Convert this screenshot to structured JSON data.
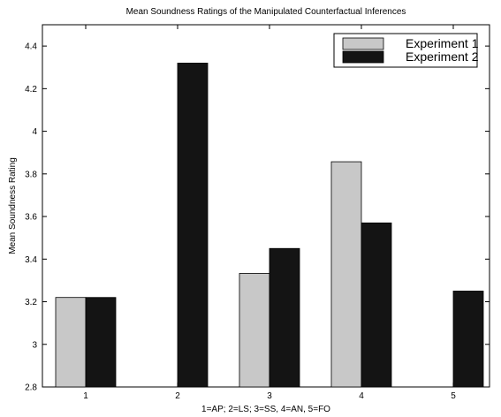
{
  "chart_data": {
    "type": "bar",
    "title": "Mean Soundness Ratings of the Manipulated Counterfactual Inferences",
    "xlabel": "1=AP; 2=LS; 3=SS, 4=AN, 5=FO",
    "ylabel": "Mean Soundness Rating",
    "categories": [
      "1",
      "2",
      "3",
      "4",
      "5"
    ],
    "series": [
      {
        "name": "Experiment 1",
        "color": "#c8c8c8",
        "values": [
          3.22,
          null,
          3.333,
          3.857,
          null
        ]
      },
      {
        "name": "Experiment 2",
        "color": "#141414",
        "values": [
          3.22,
          4.32,
          3.45,
          3.57,
          3.25
        ]
      }
    ],
    "ylim": [
      2.8,
      4.5
    ],
    "yticks": [
      2.8,
      3,
      3.2,
      3.4,
      3.6,
      3.8,
      4,
      4.2,
      4.4
    ],
    "ytick_labels": [
      "2.8",
      "3",
      "3.2",
      "3.4",
      "3.6",
      "3.8",
      "4",
      "4.2",
      "4.4"
    ],
    "grid": false,
    "legend_position": "top-right"
  }
}
